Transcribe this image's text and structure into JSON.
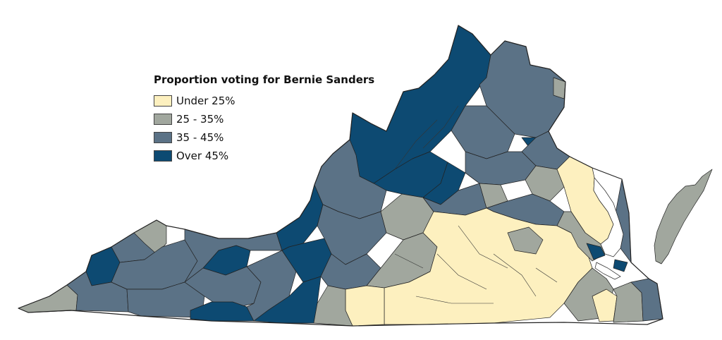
{
  "legend": {
    "title": "Proportion voting for Bernie Sanders",
    "items": [
      {
        "label": "Under 25%",
        "color": "#fdf0bf"
      },
      {
        "label": "25 - 35%",
        "color": "#a1a79e"
      },
      {
        "label": "35 - 45%",
        "color": "#5b7286"
      },
      {
        "label": "Over 45%",
        "color": "#0d4a72"
      }
    ]
  },
  "map": {
    "state": "Virginia",
    "region_classes": [
      {
        "region": "Northern Shenandoah / I-81 corridor",
        "class": "Over 45%"
      },
      {
        "region": "Charlottesville area",
        "class": "Over 45%"
      },
      {
        "region": "Southwest (Blacksburg area)",
        "class": "Over 45%"
      },
      {
        "region": "Northern Virginia",
        "class": "35 - 45%"
      },
      {
        "region": "Southside / Southern Piedmont",
        "class": "Under 25%"
      },
      {
        "region": "Northern Neck",
        "class": "Under 25%"
      },
      {
        "region": "Eastern Shore",
        "class": "25 - 35%"
      }
    ]
  }
}
